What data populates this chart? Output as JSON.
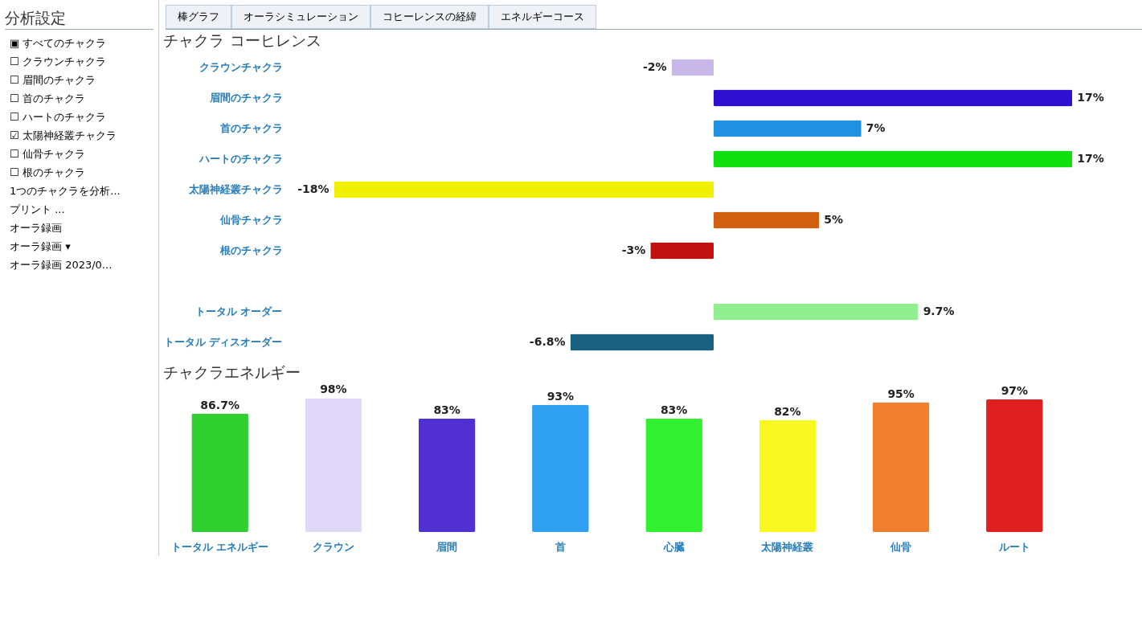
{
  "chart_data": [
    {
      "type": "other",
      "title": "分析設定",
      "annotations": [
        "▣ すべてのチャクラ",
        "☐ クラウンチャクラ",
        "☐ 眉間のチャクラ",
        "☐ 首のチャクラ",
        "☐ ハートのチャクラ",
        "☑ 太陽神経叢チャクラ",
        "☐ 仙骨チャクラ",
        "☐ 根のチャクラ",
        "1つのチャクラを分析...",
        "プリント ...",
        "オーラ録画",
        "オーラ録画 ▾",
        "オーラ録画 2023/0..."
      ]
    },
    {
      "type": "other",
      "annotations": [
        "棒グラフ",
        "オーラシミュレーション",
        "コヒーレンスの経緯",
        "エネルギーコース"
      ]
    },
    {
      "type": "bar",
      "orientation": "horizontal",
      "title": "チャクラ コーヒレンス",
      "tick_labels": "y",
      "categories": [
        "クラウンチャクラ",
        "眉間のチャクラ",
        "首のチャクラ",
        "ハートのチャクラ",
        "太陽神経叢チャクラ",
        "仙骨チャクラ",
        "根のチャクラ",
        null,
        "トータル オーダー",
        "トータル ディスオーダー"
      ],
      "values": [
        -2,
        17,
        7,
        17,
        -18,
        5,
        -3,
        null,
        9.7,
        -6.8
      ],
      "value_labels": [
        "-2%",
        "17%",
        "7%",
        "17%",
        "-18%",
        "5%",
        "-3%",
        null,
        "9.7%",
        "-6.8%"
      ],
      "colors": [
        "#c8b8e8",
        "#3010d0",
        "#2090e0",
        "#10e010",
        "#f0f000",
        "#d06010",
        "#c01010",
        "#ffffff",
        "#90f090",
        "#1a6080"
      ]
    },
    {
      "type": "bar",
      "title": "チャクラエネルギー",
      "tick_labels": "x",
      "categories": [
        "トータル エネルギー",
        "クラウン",
        "眉間",
        "首",
        "心臓",
        "太陽神経叢",
        "仙骨",
        "ルート"
      ],
      "values": [
        86.7,
        98,
        83,
        93,
        83,
        82,
        95,
        97
      ],
      "value_labels": [
        "86.7%",
        "98%",
        "83%",
        "93%",
        "83%",
        "82%",
        "95%",
        "97%"
      ],
      "colors": [
        "#30d030",
        "#e0d8f8",
        "#5030d0",
        "#30a0f0",
        "#30f030",
        "#f8f820",
        "#f08030",
        "#e02020"
      ]
    }
  ]
}
